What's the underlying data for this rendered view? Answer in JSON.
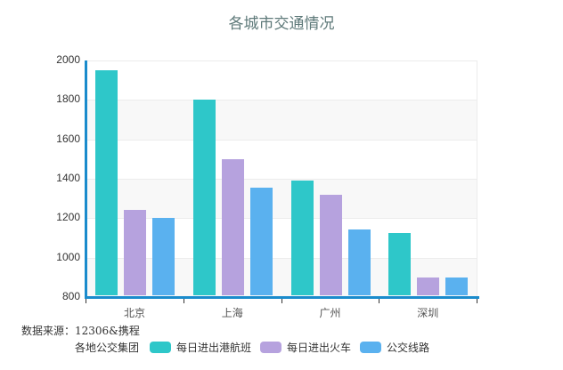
{
  "title": "各城市交通情况",
  "source": "数据来源：12306&携程",
  "legend_lead": "各地公交集团",
  "chart_data": {
    "type": "bar",
    "title": "各城市交通情况",
    "xlabel": "",
    "ylabel": "",
    "ylim": [
      800,
      2000
    ],
    "yticks": [
      800,
      1000,
      1200,
      1400,
      1600,
      1800,
      2000
    ],
    "categories": [
      "北京",
      "上海",
      "广州",
      "深圳"
    ],
    "series": [
      {
        "name": "每日进出港航班",
        "color": "#2ec7c9",
        "values": [
          1950,
          1800,
          1390,
          1125
        ]
      },
      {
        "name": "每日进出火车",
        "color": "#b6a2de",
        "values": [
          1240,
          1500,
          1320,
          900
        ]
      },
      {
        "name": "公交线路",
        "color": "#5ab1ef",
        "values": [
          1200,
          1355,
          1145,
          900
        ]
      }
    ],
    "grid": true,
    "legend_position": "bottom-left",
    "annotations": [
      "数据来源：12306&携程",
      "各地公交集团"
    ]
  }
}
